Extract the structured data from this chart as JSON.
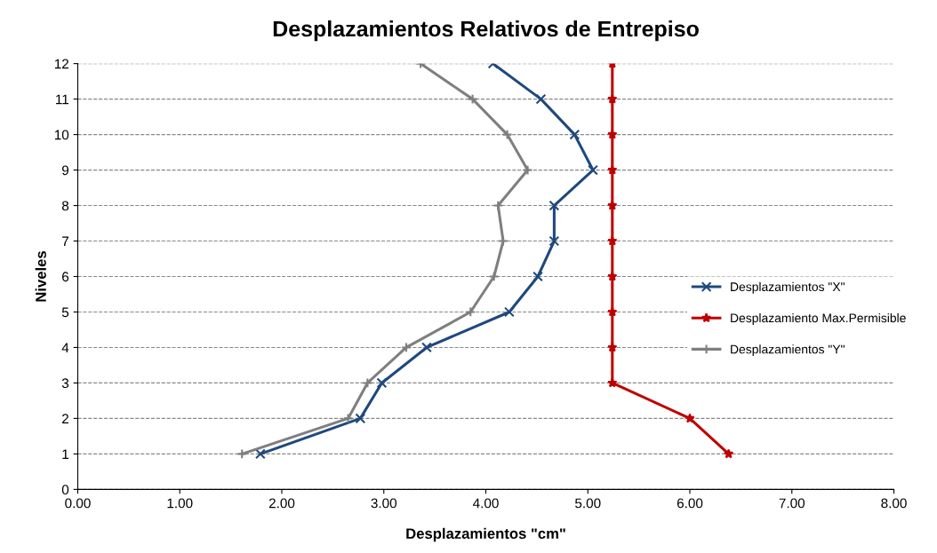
{
  "chart_data": {
    "type": "line",
    "title": "Desplazamientos Relativos de Entrepiso",
    "xlabel": "Desplazamientos \"cm\"",
    "ylabel": "Niveles",
    "series": [
      {
        "name": "Desplazamientos \"X\"",
        "color": "#1f497d",
        "marker": "cross",
        "x": [
          1.79,
          2.77,
          2.98,
          3.42,
          4.23,
          4.51,
          4.67,
          4.67,
          5.05,
          4.87,
          4.54,
          4.07
        ],
        "values": [
          1,
          2,
          3,
          4,
          5,
          6,
          7,
          8,
          9,
          10,
          11,
          12
        ]
      },
      {
        "name": "Desplazamiento Max.Permisible",
        "color": "#c00000",
        "marker": "star",
        "x": [
          6.38,
          6.0,
          5.24,
          5.24,
          5.24,
          5.24,
          5.24,
          5.24,
          5.24,
          5.24,
          5.24,
          5.24
        ],
        "values": [
          1,
          2,
          3,
          4,
          5,
          6,
          7,
          8,
          9,
          10,
          11,
          12
        ]
      },
      {
        "name": "Desplazamientos \"Y\"",
        "color": "#7f7f7f",
        "marker": "plus",
        "x": [
          1.61,
          2.65,
          2.84,
          3.22,
          3.85,
          4.08,
          4.17,
          4.12,
          4.41,
          4.21,
          3.87,
          3.36
        ],
        "values": [
          1,
          2,
          3,
          4,
          5,
          6,
          7,
          8,
          9,
          10,
          11,
          12
        ]
      }
    ],
    "xlim": [
      0,
      8
    ],
    "xticks": [
      {
        "value": 0,
        "label": "0.00"
      },
      {
        "value": 1,
        "label": "1.00"
      },
      {
        "value": 2,
        "label": "2.00"
      },
      {
        "value": 3,
        "label": "3.00"
      },
      {
        "value": 4,
        "label": "4.00"
      },
      {
        "value": 5,
        "label": "5.00"
      },
      {
        "value": 6,
        "label": "6.00"
      },
      {
        "value": 7,
        "label": "7.00"
      },
      {
        "value": 8,
        "label": "8.00"
      }
    ],
    "ylim": [
      0,
      12
    ],
    "yticks": [
      0,
      1,
      2,
      3,
      4,
      5,
      6,
      7,
      8,
      9,
      10,
      11,
      12
    ],
    "grid": "y",
    "legend": "right"
  }
}
